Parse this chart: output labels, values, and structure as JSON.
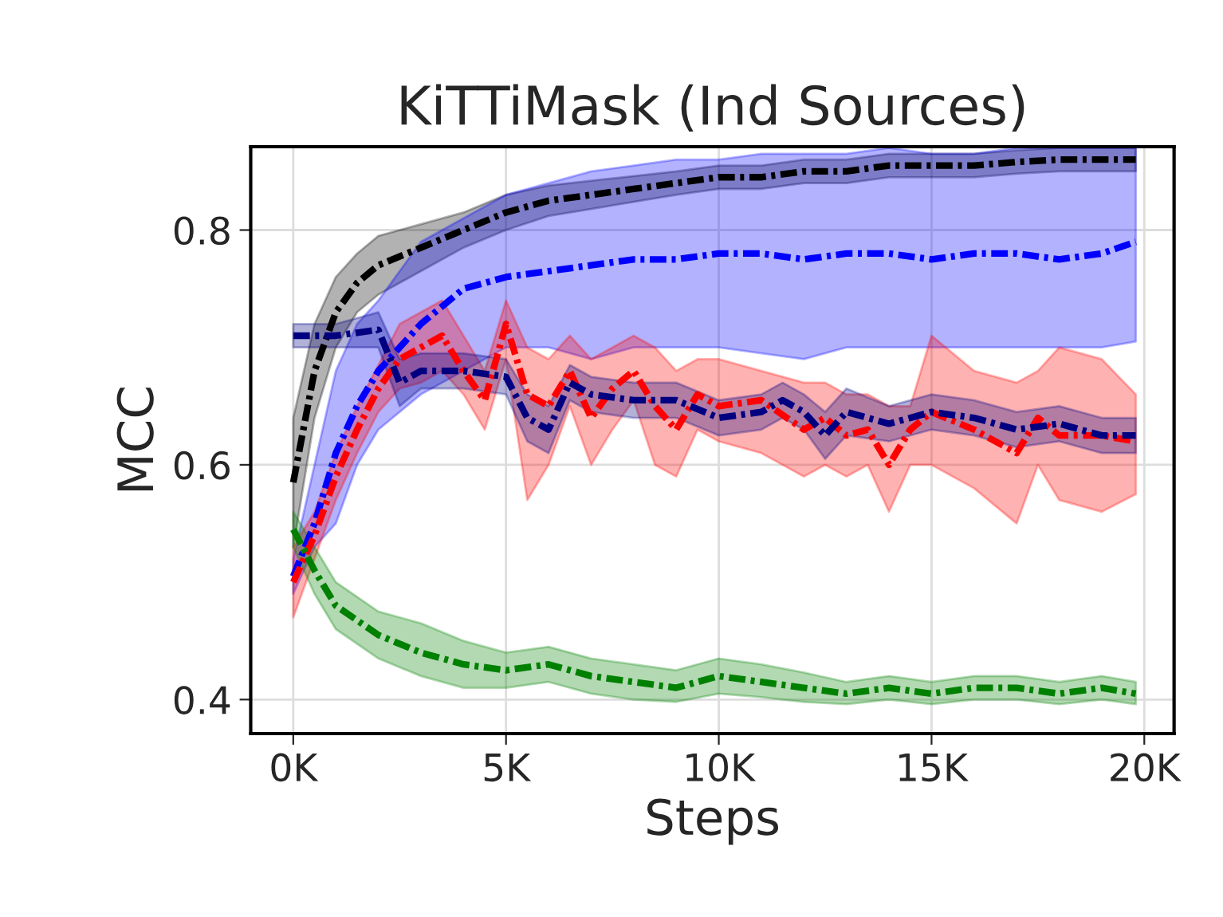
{
  "chart_data": {
    "type": "line",
    "title": "KiTTiMask (Ind Sources)",
    "xlabel": "Steps",
    "ylabel": "MCC",
    "xlim": [
      -1000,
      20700
    ],
    "ylim": [
      0.371,
      0.871
    ],
    "xticks": [
      {
        "value": 0,
        "label": "0K"
      },
      {
        "value": 5000,
        "label": "5K"
      },
      {
        "value": 10000,
        "label": "10K"
      },
      {
        "value": 15000,
        "label": "15K"
      },
      {
        "value": 20000,
        "label": "20K"
      }
    ],
    "yticks": [
      0.4,
      0.6,
      0.8
    ],
    "grid": true,
    "line_style": "dashdot",
    "series": [
      {
        "color": "#000000",
        "x": [
          0,
          500,
          1000,
          1500,
          2000,
          3000,
          4000,
          5000,
          6000,
          7000,
          8000,
          9000,
          10000,
          11000,
          12000,
          13000,
          14000,
          15000,
          16000,
          17000,
          18000,
          19000,
          19800
        ],
        "values": [
          0.585,
          0.68,
          0.73,
          0.755,
          0.77,
          0.785,
          0.8,
          0.815,
          0.825,
          0.83,
          0.835,
          0.84,
          0.845,
          0.845,
          0.85,
          0.85,
          0.855,
          0.855,
          0.855,
          0.858,
          0.86,
          0.86,
          0.86
        ],
        "lower": [
          0.53,
          0.64,
          0.7,
          0.73,
          0.745,
          0.765,
          0.785,
          0.8,
          0.812,
          0.818,
          0.824,
          0.83,
          0.835,
          0.835,
          0.84,
          0.84,
          0.845,
          0.845,
          0.845,
          0.848,
          0.85,
          0.85,
          0.85
        ],
        "upper": [
          0.64,
          0.72,
          0.76,
          0.78,
          0.795,
          0.805,
          0.815,
          0.83,
          0.838,
          0.842,
          0.846,
          0.85,
          0.855,
          0.855,
          0.86,
          0.86,
          0.865,
          0.865,
          0.865,
          0.868,
          0.87,
          0.87,
          0.87
        ]
      },
      {
        "color": "#0000ff",
        "x": [
          0,
          500,
          1000,
          1500,
          2000,
          3000,
          4000,
          5000,
          6000,
          7000,
          8000,
          9000,
          10000,
          11000,
          12000,
          13000,
          14000,
          15000,
          16000,
          17000,
          18000,
          19000,
          19800
        ],
        "values": [
          0.505,
          0.55,
          0.61,
          0.65,
          0.68,
          0.72,
          0.75,
          0.76,
          0.765,
          0.77,
          0.775,
          0.775,
          0.78,
          0.78,
          0.775,
          0.78,
          0.78,
          0.775,
          0.78,
          0.78,
          0.775,
          0.78,
          0.79
        ],
        "lower": [
          0.49,
          0.53,
          0.55,
          0.6,
          0.63,
          0.66,
          0.68,
          0.7,
          0.7,
          0.69,
          0.7,
          0.7,
          0.7,
          0.695,
          0.69,
          0.7,
          0.7,
          0.7,
          0.7,
          0.7,
          0.7,
          0.7,
          0.705
        ],
        "upper": [
          0.52,
          0.6,
          0.68,
          0.72,
          0.74,
          0.79,
          0.81,
          0.83,
          0.84,
          0.85,
          0.855,
          0.86,
          0.86,
          0.865,
          0.865,
          0.865,
          0.87,
          0.865,
          0.865,
          0.87,
          0.87,
          0.87,
          0.87
        ]
      },
      {
        "color": "#ff0000",
        "x": [
          0,
          500,
          1000,
          1500,
          2000,
          2500,
          3000,
          3500,
          4000,
          4500,
          5000,
          5500,
          6000,
          6500,
          7000,
          7500,
          8000,
          8500,
          9000,
          9500,
          10000,
          11000,
          12000,
          12500,
          13000,
          13500,
          14000,
          14500,
          15000,
          16000,
          17000,
          17500,
          18000,
          19000,
          19800
        ],
        "values": [
          0.5,
          0.54,
          0.59,
          0.63,
          0.665,
          0.69,
          0.7,
          0.71,
          0.68,
          0.655,
          0.72,
          0.66,
          0.65,
          0.68,
          0.64,
          0.665,
          0.68,
          0.65,
          0.63,
          0.66,
          0.65,
          0.655,
          0.63,
          0.64,
          0.625,
          0.63,
          0.6,
          0.63,
          0.645,
          0.63,
          0.61,
          0.64,
          0.625,
          0.625,
          0.62
        ],
        "lower": [
          0.47,
          0.52,
          0.57,
          0.61,
          0.645,
          0.665,
          0.67,
          0.68,
          0.66,
          0.63,
          0.69,
          0.57,
          0.6,
          0.65,
          0.6,
          0.63,
          0.655,
          0.6,
          0.59,
          0.63,
          0.62,
          0.61,
          0.59,
          0.6,
          0.59,
          0.6,
          0.56,
          0.6,
          0.6,
          0.58,
          0.55,
          0.6,
          0.57,
          0.56,
          0.575
        ],
        "upper": [
          0.53,
          0.56,
          0.61,
          0.65,
          0.685,
          0.72,
          0.73,
          0.74,
          0.71,
          0.68,
          0.74,
          0.7,
          0.69,
          0.71,
          0.69,
          0.7,
          0.71,
          0.7,
          0.68,
          0.69,
          0.69,
          0.68,
          0.67,
          0.67,
          0.66,
          0.66,
          0.65,
          0.65,
          0.71,
          0.68,
          0.67,
          0.68,
          0.7,
          0.69,
          0.66
        ]
      },
      {
        "color": "#000080",
        "x": [
          0,
          1000,
          2000,
          2500,
          3000,
          4000,
          5000,
          5500,
          6000,
          6500,
          7000,
          8000,
          9000,
          10000,
          11000,
          11500,
          12000,
          12500,
          13000,
          14000,
          15000,
          16000,
          17000,
          18000,
          19000,
          19800
        ],
        "values": [
          0.71,
          0.71,
          0.715,
          0.67,
          0.68,
          0.68,
          0.675,
          0.64,
          0.63,
          0.67,
          0.66,
          0.655,
          0.655,
          0.64,
          0.645,
          0.655,
          0.645,
          0.625,
          0.645,
          0.635,
          0.645,
          0.64,
          0.63,
          0.635,
          0.625,
          0.625
        ],
        "lower": [
          0.7,
          0.7,
          0.7,
          0.65,
          0.665,
          0.665,
          0.66,
          0.62,
          0.61,
          0.655,
          0.645,
          0.64,
          0.64,
          0.625,
          0.63,
          0.64,
          0.63,
          0.605,
          0.625,
          0.62,
          0.63,
          0.625,
          0.615,
          0.62,
          0.61,
          0.61
        ],
        "upper": [
          0.72,
          0.72,
          0.73,
          0.69,
          0.695,
          0.695,
          0.69,
          0.66,
          0.65,
          0.685,
          0.675,
          0.67,
          0.67,
          0.655,
          0.66,
          0.67,
          0.66,
          0.645,
          0.665,
          0.65,
          0.66,
          0.655,
          0.645,
          0.65,
          0.64,
          0.64
        ]
      },
      {
        "color": "#008000",
        "x": [
          0,
          500,
          1000,
          2000,
          3000,
          4000,
          5000,
          6000,
          7000,
          8000,
          9000,
          10000,
          11000,
          12000,
          13000,
          14000,
          15000,
          16000,
          17000,
          18000,
          19000,
          19800
        ],
        "values": [
          0.545,
          0.51,
          0.48,
          0.455,
          0.44,
          0.43,
          0.425,
          0.43,
          0.42,
          0.415,
          0.41,
          0.42,
          0.415,
          0.41,
          0.405,
          0.41,
          0.405,
          0.41,
          0.41,
          0.405,
          0.41,
          0.405
        ],
        "lower": [
          0.53,
          0.49,
          0.46,
          0.435,
          0.42,
          0.41,
          0.41,
          0.415,
          0.405,
          0.4,
          0.398,
          0.405,
          0.402,
          0.398,
          0.396,
          0.4,
          0.396,
          0.4,
          0.4,
          0.396,
          0.4,
          0.396
        ],
        "upper": [
          0.56,
          0.53,
          0.5,
          0.475,
          0.465,
          0.45,
          0.44,
          0.445,
          0.435,
          0.43,
          0.425,
          0.435,
          0.43,
          0.423,
          0.415,
          0.42,
          0.415,
          0.42,
          0.42,
          0.415,
          0.42,
          0.415
        ]
      }
    ]
  }
}
